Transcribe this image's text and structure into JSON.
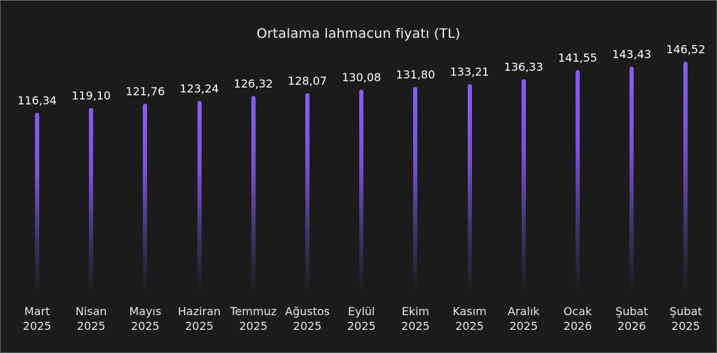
{
  "chart_data": {
    "type": "bar",
    "title": "Ortalama lahmacun fiyatı (TL)",
    "xlabel": "",
    "ylabel": "",
    "grid": false,
    "legend": null,
    "categories": [
      "Mart 2025",
      "Nisan 2025",
      "Mayıs 2025",
      "Haziran 2025",
      "Temmuz 2025",
      "Ağustos 2025",
      "Eylül 2025",
      "Ekim 2025",
      "Kasım 2025",
      "Aralık 2025",
      "Ocak 2026",
      "Şubat 2026",
      "Şubat 2025"
    ],
    "values": [
      116.34,
      119.1,
      121.76,
      123.24,
      126.32,
      128.07,
      130.08,
      131.8,
      133.21,
      136.33,
      141.55,
      143.43,
      146.52
    ],
    "value_labels": [
      "116,34",
      "119,10",
      "121,76",
      "123,24",
      "126,32",
      "128,07",
      "130,08",
      "131,80",
      "133,21",
      "136,33",
      "141,55",
      "143,43",
      "146,52"
    ],
    "bar_color": "#8a5cf0"
  },
  "bars": [
    {
      "month": "Mart",
      "year": "2025",
      "label": "116,34"
    },
    {
      "month": "Nisan",
      "year": "2025",
      "label": "119,10"
    },
    {
      "month": "Mayıs",
      "year": "2025",
      "label": "121,76"
    },
    {
      "month": "Haziran",
      "year": "2025",
      "label": "123,24"
    },
    {
      "month": "Temmuz",
      "year": "2025",
      "label": "126,32"
    },
    {
      "month": "Ağustos",
      "year": "2025",
      "label": "128,07"
    },
    {
      "month": "Eylül",
      "year": "2025",
      "label": "130,08"
    },
    {
      "month": "Ekim",
      "year": "2025",
      "label": "131,80"
    },
    {
      "month": "Kasım",
      "year": "2025",
      "label": "133,21"
    },
    {
      "month": "Aralık",
      "year": "2025",
      "label": "136,33"
    },
    {
      "month": "Ocak",
      "year": "2026",
      "label": "141,55"
    },
    {
      "month": "Şubat",
      "year": "2026",
      "label": "143,43"
    },
    {
      "month": "Şubat",
      "year": "2025",
      "label": "146,52"
    }
  ]
}
